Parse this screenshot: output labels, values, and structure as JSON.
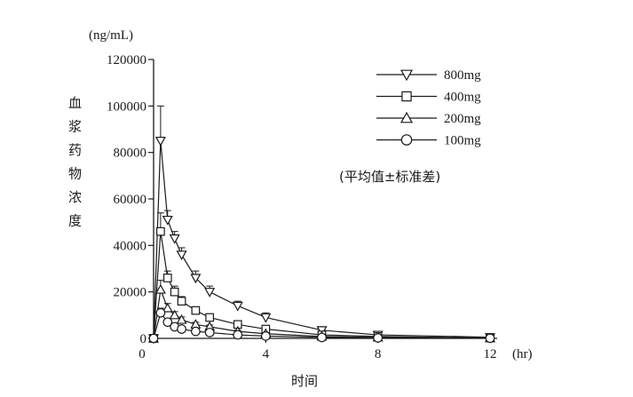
{
  "chart_data": {
    "type": "line",
    "y_unit_label": "(ng/mL)",
    "x_unit_label": "(hr)",
    "ylabel": "血浆药物浓度",
    "xlabel": "时间",
    "annotation": "(平均值±标准差)",
    "xlim": [
      0,
      12
    ],
    "ylim": [
      0,
      120000
    ],
    "x_ticks": [
      0,
      4,
      8,
      12
    ],
    "y_ticks": [
      0,
      20000,
      40000,
      60000,
      80000,
      100000,
      120000
    ],
    "legend_position": "top-right",
    "series": [
      {
        "name": "800mg",
        "marker": "triangle-down",
        "x": [
          0,
          0.25,
          0.5,
          0.75,
          1,
          1.5,
          2,
          3,
          4,
          6,
          8,
          12
        ],
        "y": [
          0,
          85000,
          51000,
          43000,
          36000,
          26000,
          20000,
          14000,
          9000,
          3500,
          1500,
          500
        ],
        "err": [
          0,
          15000,
          4000,
          3000,
          3000,
          3000,
          2500,
          2000,
          2000,
          800,
          400,
          100
        ]
      },
      {
        "name": "400mg",
        "marker": "square",
        "x": [
          0,
          0.25,
          0.5,
          0.75,
          1,
          1.5,
          2,
          3,
          4,
          6,
          8,
          12
        ],
        "y": [
          0,
          46000,
          26000,
          20000,
          16000,
          12000,
          9000,
          6000,
          4000,
          1500,
          800,
          200
        ],
        "err": [
          0,
          8000,
          3000,
          2500,
          2000,
          1500,
          1200,
          900,
          700,
          300,
          150,
          50
        ]
      },
      {
        "name": "200mg",
        "marker": "triangle-up",
        "x": [
          0,
          0.25,
          0.5,
          0.75,
          1,
          1.5,
          2,
          3,
          4,
          6,
          8,
          12
        ],
        "y": [
          0,
          21000,
          13000,
          10000,
          8000,
          6000,
          5000,
          3000,
          2000,
          800,
          400,
          100
        ],
        "err": [
          0,
          4000,
          2000,
          1500,
          1200,
          900,
          700,
          500,
          400,
          150,
          80,
          30
        ]
      },
      {
        "name": "100mg",
        "marker": "circle",
        "x": [
          0,
          0.25,
          0.5,
          0.75,
          1,
          1.5,
          2,
          3,
          4,
          6,
          8,
          12
        ],
        "y": [
          0,
          11000,
          7000,
          5000,
          4000,
          3000,
          2500,
          1500,
          1000,
          400,
          200,
          50
        ],
        "err": [
          0,
          2000,
          1000,
          800,
          600,
          500,
          400,
          300,
          200,
          80,
          40,
          20
        ]
      }
    ]
  }
}
